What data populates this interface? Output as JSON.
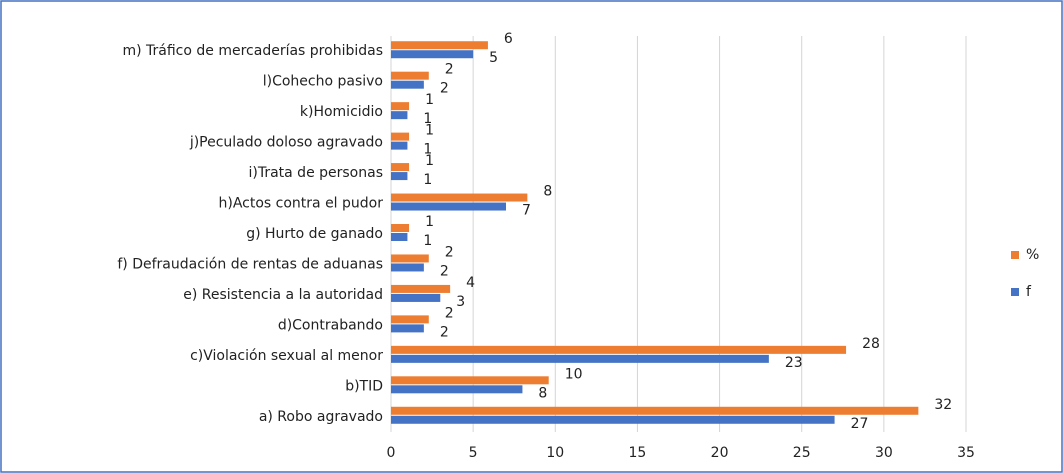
{
  "chart_data": {
    "type": "bar",
    "orientation": "horizontal",
    "categories": [
      "a) Robo agravado",
      "b)TID",
      "c)Violación sexual al menor",
      "d)Contrabando",
      "e) Resistencia a la autoridad",
      "f) Defraudación de rentas de aduanas",
      "g) Hurto de ganado",
      "h)Actos contra el pudor",
      "i)Trata de personas",
      "j)Peculado doloso agravado",
      "k)Homicidio",
      "l)Cohecho pasivo",
      "m) Tráfico de mercaderías prohibidas"
    ],
    "series": [
      {
        "name": "%",
        "color": "#ed7d31",
        "values": [
          32.1,
          9.6,
          27.7,
          2.3,
          3.6,
          2.3,
          1.1,
          8.3,
          1.1,
          1.1,
          1.1,
          2.3,
          5.9
        ],
        "value_labels": [
          "32",
          "10",
          "28",
          "2",
          "4",
          "2",
          "1",
          "8",
          "1",
          "1",
          "1",
          "2",
          "6"
        ]
      },
      {
        "name": "f",
        "color": "#4472c4",
        "values": [
          27,
          8,
          23,
          2,
          3,
          2,
          1,
          7,
          1,
          1,
          1,
          2,
          5
        ]
      }
    ],
    "xlim": [
      0,
      35
    ],
    "xticks": [
      0,
      5,
      10,
      15,
      20,
      25,
      30,
      35
    ],
    "grid": true,
    "legend": "right"
  }
}
